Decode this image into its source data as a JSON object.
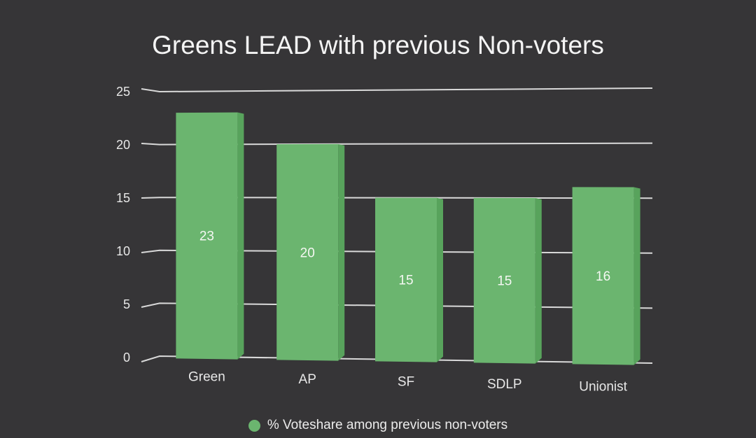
{
  "chart_data": {
    "type": "bar",
    "title": "Greens LEAD with previous Non-voters",
    "categories": [
      "Green",
      "AP",
      "SF",
      "SDLP",
      "Unionist"
    ],
    "series": [
      {
        "name": "% Voteshare among previous non-voters",
        "values": [
          23,
          20,
          15,
          15,
          16
        ],
        "data_labels": [
          "23",
          "20",
          "15",
          "15",
          "16"
        ]
      }
    ],
    "xlabel": "",
    "ylabel": "",
    "ylim": [
      0,
      25
    ],
    "yticks": [
      0,
      5,
      10,
      15,
      20,
      25
    ],
    "ytick_labels": [
      "0",
      "5",
      "10",
      "15",
      "20",
      "25"
    ],
    "grid": true,
    "legend_position": "bottom",
    "style": "3d-perspective"
  },
  "colors": {
    "background": "#363537",
    "bar_front": "#6bb56f",
    "bar_side": "#58a35c",
    "grid": "#d9d9d9",
    "text": "#ececec"
  }
}
